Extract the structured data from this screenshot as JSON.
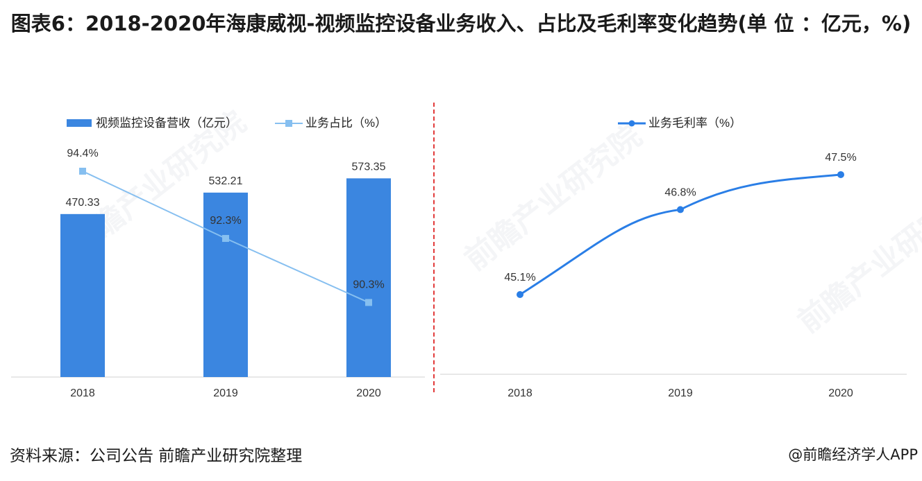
{
  "title": "图表6：2018-2020年海康威视-视频监控设备业务收入、占比及毛利率变化趋势(单 位 ：亿元，%)",
  "source": "资料来源：公司公告 前瞻产业研究院整理",
  "credit": "@前瞻经济学人APP",
  "watermark": "前瞻产业研究院",
  "colors": {
    "bar": "#3b86e0",
    "share_line": "#86bff0",
    "margin_line": "#2a7ee6",
    "divider": "#e23a3a"
  },
  "chart_data": [
    {
      "type": "bar+line",
      "categories": [
        "2018",
        "2019",
        "2020"
      ],
      "series": [
        {
          "name": "视频监控设备营收（亿元）",
          "type": "bar",
          "values": [
            470.33,
            532.21,
            573.35
          ],
          "labels": [
            "470.33",
            "532.21",
            "573.35"
          ]
        },
        {
          "name": "业务占比（%）",
          "type": "line",
          "values": [
            94.4,
            92.3,
            90.3
          ],
          "labels": [
            "94.4%",
            "92.3%",
            "90.3%"
          ]
        }
      ],
      "legend_position": "top",
      "grid": false
    },
    {
      "type": "line",
      "categories": [
        "2018",
        "2019",
        "2020"
      ],
      "series": [
        {
          "name": "业务毛利率（%）",
          "values": [
            45.1,
            46.8,
            47.5
          ],
          "labels": [
            "45.1%",
            "46.8%",
            "47.5%"
          ]
        }
      ],
      "legend_position": "top",
      "grid": false
    }
  ]
}
